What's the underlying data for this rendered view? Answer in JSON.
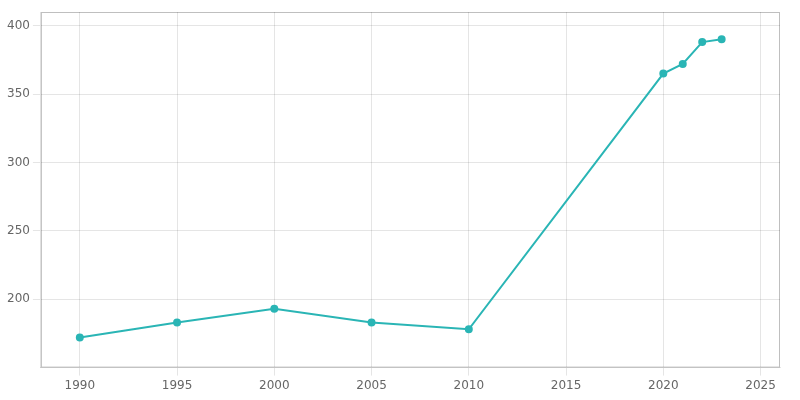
{
  "chart_data": {
    "type": "line",
    "x": [
      1990,
      1995,
      2000,
      2005,
      2010,
      2020,
      2021,
      2022,
      2023
    ],
    "values": [
      172,
      183,
      193,
      183,
      178,
      365,
      372,
      388,
      390
    ],
    "color": "#2ab5b5",
    "marker": "circle",
    "xlim": [
      1988,
      2026
    ],
    "ylim": [
      150,
      410
    ],
    "xticks": [
      1990,
      1995,
      2000,
      2005,
      2010,
      2015,
      2020,
      2025
    ],
    "yticks": [
      200,
      250,
      300,
      350,
      400
    ],
    "grid": true
  }
}
